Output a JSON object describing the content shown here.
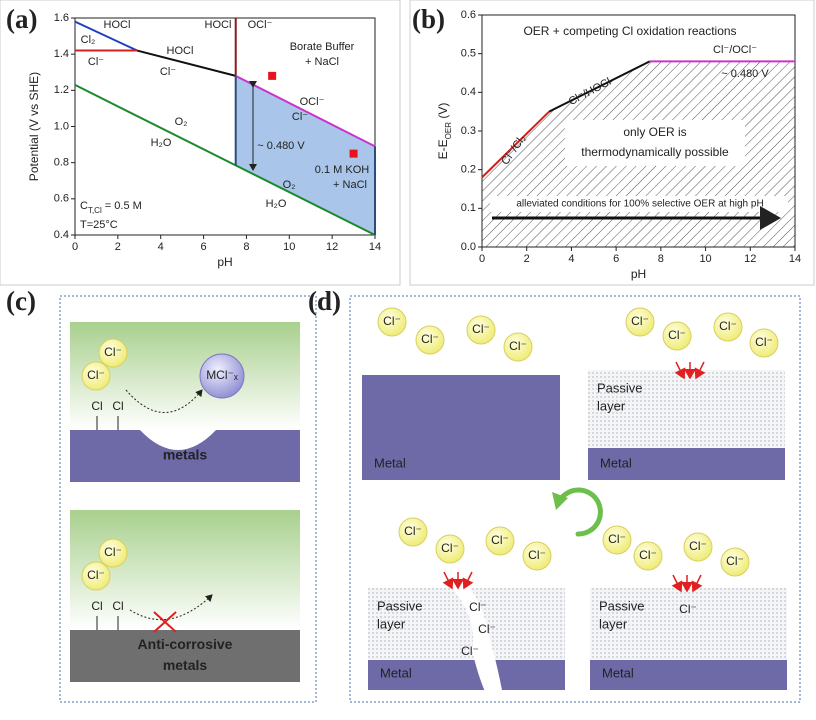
{
  "panel_labels": [
    "(a)",
    "(b)",
    "(c)",
    "(d)"
  ],
  "chart_data": [
    {
      "type": "line",
      "xlabel": "pH",
      "ylabel": "Potential (V vs SHE)",
      "xlim": [
        0,
        14
      ],
      "ylim": [
        0.4,
        1.6
      ],
      "xticks": [
        0,
        2,
        4,
        6,
        8,
        10,
        12,
        14
      ],
      "yticks": [
        0.4,
        0.6,
        0.8,
        {
          "value": 1.0,
          "label": "1.0"
        },
        1.2,
        1.4,
        1.6
      ],
      "series": [
        {
          "color": "#2040c0",
          "x": [
            0,
            2.9
          ],
          "values": [
            1.58,
            1.42
          ]
        },
        {
          "color": "#d02020",
          "x": [
            0,
            2.9
          ],
          "values": [
            1.42,
            1.42
          ]
        },
        {
          "color": "#111111",
          "x": [
            2.9,
            7.5
          ],
          "values": [
            1.42,
            1.28
          ]
        },
        {
          "color": "#8b1a1a",
          "x": [
            7.5,
            7.5
          ],
          "values": [
            1.6,
            1.28
          ]
        },
        {
          "color": "#cc33cc",
          "x": [
            7.5,
            14
          ],
          "values": [
            1.28,
            0.89
          ]
        },
        {
          "color": "#1a8a2a",
          "x": [
            0,
            7.5,
            14
          ],
          "values": [
            1.23,
            0.785,
            0.4
          ]
        },
        {
          "color": "#2b4d7a",
          "x": [
            7.5,
            7.5
          ],
          "values": [
            1.28,
            0.785
          ]
        },
        {
          "color": "#2b4d7a",
          "x": [
            14,
            14
          ],
          "values": [
            0.89,
            0.4
          ]
        }
      ],
      "region_color": "#a9c6ea",
      "points": {
        "color": "#e8141c",
        "x": [
          9.2,
          13
        ],
        "values": [
          1.28,
          0.85
        ]
      },
      "annotations": [
        "HOCl",
        "Cl₂",
        "Cl⁻",
        "HOCl",
        "Cl⁻",
        "HOCl",
        "OCl⁻",
        "Borate Buffer",
        "+ NaCl",
        "OCl⁻",
        "Cl⁻",
        "~ 0.480 V",
        "O₂",
        "H₂O",
        "0.1 M KOH",
        "+ NaCl",
        "O₂",
        "H₂O",
        "T=25°C"
      ],
      "condition": [
        "C",
        "T,Cl",
        " = 0.5 M"
      ]
    },
    {
      "type": "line",
      "title": "OER + competing Cl oxidation reactions",
      "xlabel": "pH",
      "ylabel": [
        "E-E",
        "OER",
        " (V)"
      ],
      "xlim": [
        0,
        14
      ],
      "ylim": [
        0,
        0.6
      ],
      "xticks": [
        0,
        2,
        4,
        6,
        8,
        10,
        12,
        14
      ],
      "yticks": [
        {
          "value": 0,
          "label": "0.0"
        },
        0.1,
        0.2,
        0.3,
        0.4,
        0.5,
        0.6
      ],
      "series": [
        {
          "color": "#d02020",
          "x": [
            0,
            3
          ],
          "values": [
            0.18,
            0.35
          ]
        },
        {
          "color": "#111111",
          "x": [
            3,
            7.5
          ],
          "values": [
            0.35,
            0.48
          ]
        },
        {
          "color": "#cc33cc",
          "x": [
            7.5,
            14
          ],
          "values": [
            0.48,
            0.48
          ]
        }
      ],
      "hatch": true,
      "annotations": [
        "Cl⁻/OCl⁻",
        "~ 0.480 V",
        "Cl⁻/HOCl",
        "Cl⁻/Cl₂"
      ],
      "box_text": [
        "only OER is",
        "thermodynamically possible"
      ],
      "arrow_text": "alleviated conditions for 100% selective OER at high pH"
    }
  ],
  "panel_c": {
    "top": {
      "ions": [
        "Cl⁻",
        "Cl⁻"
      ],
      "adsorbed": [
        "Cl",
        "Cl"
      ],
      "product": "MCl⁻ₓ",
      "substrate": [
        "metals"
      ]
    },
    "bottom": {
      "ions": [
        "Cl⁻",
        "Cl⁻"
      ],
      "adsorbed": [
        "Cl",
        "Cl"
      ],
      "substrate": [
        "Anti-corrosive",
        "metals"
      ]
    }
  },
  "panel_d": [
    {
      "ions": [
        "Cl⁻",
        "Cl⁻",
        "Cl⁻",
        "Cl⁻"
      ],
      "substrate": "Metal"
    },
    {
      "ions": [
        "Cl⁻",
        "Cl⁻",
        "Cl⁻",
        "Cl⁻"
      ],
      "layer": [
        "Passive",
        "layer"
      ],
      "substrate": "Metal"
    },
    {
      "ions": [
        "Cl⁻",
        "Cl⁻",
        "Cl⁻",
        "Cl⁻"
      ],
      "layer": [
        "Passive",
        "layer"
      ],
      "pit_ions": [
        "Cl⁻",
        "Cl⁻",
        "Cl⁻"
      ],
      "substrate": "Metal"
    },
    {
      "ions": [
        "Cl⁻",
        "Cl⁻",
        "Cl⁻",
        "Cl⁻"
      ],
      "layer": [
        "Passive",
        "layer"
      ],
      "pit_ions": [
        "Cl⁻"
      ],
      "substrate": "Metal"
    }
  ]
}
